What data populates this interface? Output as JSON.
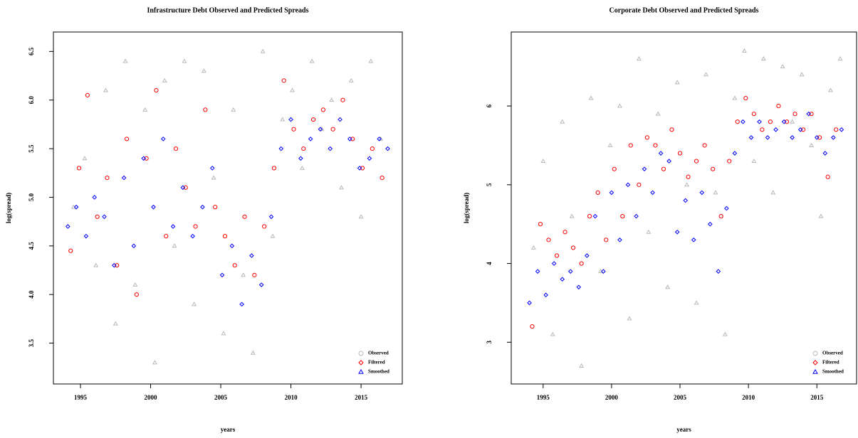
{
  "chart_data": [
    {
      "type": "scatter",
      "title": "Infrastructure Debt Observed and Predicted Spreads",
      "x_label": "years",
      "y_label": "log(spread)",
      "xlim": [
        1993.07,
        2017.94
      ],
      "ylim": [
        3.08,
        6.7
      ],
      "xticks": [
        1995,
        2000,
        2005,
        2010,
        2015
      ],
      "yticks": [
        3.5,
        {
          "value": 4,
          "label": "4.0"
        },
        4.5,
        {
          "value": 5,
          "label": "5.0"
        },
        5.5,
        {
          "value": 6,
          "label": "6.0"
        },
        6.5
      ],
      "legend": "bottom right",
      "series": [
        {
          "name": "Observed",
          "color": "#b8b8b8",
          "marker": "triangle",
          "legend_marker": "circle",
          "x": [
            1994.5,
            1995.3,
            1996.1,
            1996.8,
            1997.5,
            1998.2,
            1998.9,
            1999.6,
            2000.3,
            2001.0,
            2001.7,
            2002.4,
            2003.1,
            2003.8,
            2004.5,
            2005.2,
            2005.9,
            2006.6,
            2007.3,
            2008.0,
            2008.7,
            2009.4,
            2010.1,
            2010.8,
            2011.5,
            2012.2,
            2012.9,
            2013.6,
            2014.3,
            2015.0,
            2015.7,
            2016.4
          ],
          "values": [
            4.9,
            5.4,
            4.3,
            6.1,
            3.7,
            6.4,
            4.1,
            5.9,
            3.3,
            6.2,
            4.5,
            6.4,
            3.9,
            6.3,
            5.2,
            3.6,
            5.9,
            4.2,
            3.4,
            6.5,
            4.6,
            5.8,
            6.1,
            5.3,
            6.4,
            5.7,
            6.0,
            5.1,
            6.2,
            4.8,
            6.4,
            5.6
          ]
        },
        {
          "name": "Filtered",
          "color": "#ff0000",
          "marker": "circle",
          "legend_marker": "diamond",
          "x": [
            1994.3,
            1994.9,
            1995.5,
            1996.2,
            1996.9,
            1997.6,
            1998.3,
            1999.0,
            1999.7,
            2000.4,
            2001.1,
            2001.8,
            2002.5,
            2003.2,
            2003.9,
            2004.6,
            2005.3,
            2006.0,
            2006.7,
            2007.4,
            2008.1,
            2008.8,
            2009.5,
            2010.2,
            2010.9,
            2011.6,
            2012.3,
            2013.0,
            2013.7,
            2014.4,
            2015.1,
            2015.8,
            2016.5
          ],
          "values": [
            4.45,
            5.3,
            6.05,
            4.8,
            5.2,
            4.3,
            5.6,
            4.0,
            5.4,
            6.1,
            4.6,
            5.5,
            5.1,
            4.7,
            5.9,
            4.9,
            4.6,
            4.3,
            4.8,
            4.2,
            4.7,
            5.3,
            6.2,
            5.7,
            5.5,
            5.8,
            5.9,
            5.7,
            6.0,
            5.6,
            5.3,
            5.5,
            5.2
          ]
        },
        {
          "name": "Smoothed",
          "color": "#0000ff",
          "marker": "diamond",
          "legend_marker": "triangle",
          "x": [
            1994.1,
            1994.7,
            1995.4,
            1996.0,
            1996.7,
            1997.4,
            1998.1,
            1998.8,
            1999.5,
            2000.2,
            2000.9,
            2001.6,
            2002.3,
            2003.0,
            2003.7,
            2004.4,
            2005.1,
            2005.8,
            2006.5,
            2007.2,
            2007.9,
            2008.6,
            2009.3,
            2010.0,
            2010.7,
            2011.4,
            2012.1,
            2012.8,
            2013.5,
            2014.2,
            2014.9,
            2015.6,
            2016.3,
            2016.9
          ],
          "values": [
            4.7,
            4.9,
            4.6,
            5.0,
            4.8,
            4.3,
            5.2,
            4.5,
            5.4,
            4.9,
            5.6,
            4.7,
            5.1,
            4.6,
            4.9,
            5.3,
            4.2,
            4.5,
            3.9,
            4.4,
            4.1,
            4.8,
            5.5,
            5.8,
            5.4,
            5.6,
            5.7,
            5.5,
            5.8,
            5.6,
            5.3,
            5.4,
            5.6,
            5.5
          ]
        }
      ]
    },
    {
      "type": "scatter",
      "title": "Corporate Debt Observed and Predicted Spreads",
      "x_label": "years",
      "y_label": "log(spread)",
      "xlim": [
        1992.67,
        2017.9
      ],
      "ylim": [
        2.47,
        6.94
      ],
      "xticks": [
        1995,
        2000,
        2005,
        2010,
        2015
      ],
      "yticks": [
        3,
        4,
        5,
        6
      ],
      "legend": "bottom right",
      "series": [
        {
          "name": "Observed",
          "color": "#b8b8b8",
          "marker": "triangle",
          "legend_marker": "circle",
          "x": [
            1994.3,
            1995.0,
            1995.7,
            1996.4,
            1997.1,
            1997.8,
            1998.5,
            1999.2,
            1999.9,
            2000.6,
            2001.3,
            2002.0,
            2002.7,
            2003.4,
            2004.1,
            2004.8,
            2005.5,
            2006.2,
            2006.9,
            2007.6,
            2008.3,
            2009.0,
            2009.7,
            2010.4,
            2011.1,
            2011.8,
            2012.5,
            2013.2,
            2013.9,
            2014.6,
            2015.3,
            2016.0,
            2016.7
          ],
          "values": [
            4.2,
            5.3,
            3.1,
            5.8,
            4.6,
            2.7,
            6.1,
            3.9,
            5.5,
            6.0,
            3.3,
            6.6,
            4.4,
            5.9,
            3.7,
            6.3,
            5.0,
            3.5,
            6.4,
            4.9,
            3.1,
            6.1,
            6.7,
            5.3,
            6.6,
            4.9,
            6.5,
            5.8,
            6.4,
            5.5,
            4.6,
            6.2,
            6.6
          ]
        },
        {
          "name": "Filtered",
          "color": "#ff0000",
          "marker": "circle",
          "legend_marker": "diamond",
          "x": [
            1994.2,
            1994.8,
            1995.4,
            1996.0,
            1996.6,
            1997.2,
            1997.8,
            1998.4,
            1999.0,
            1999.6,
            2000.2,
            2000.8,
            2001.4,
            2002.0,
            2002.6,
            2003.2,
            2003.8,
            2004.4,
            2005.0,
            2005.6,
            2006.2,
            2006.8,
            2007.4,
            2008.0,
            2008.6,
            2009.2,
            2009.8,
            2010.4,
            2011.0,
            2011.6,
            2012.2,
            2012.8,
            2013.4,
            2014.0,
            2014.6,
            2015.2,
            2015.8,
            2016.4
          ],
          "values": [
            3.2,
            4.5,
            4.3,
            4.1,
            4.4,
            4.2,
            4.0,
            4.6,
            4.9,
            4.3,
            5.2,
            4.6,
            5.5,
            5.0,
            5.6,
            5.5,
            5.2,
            5.7,
            5.4,
            5.1,
            5.3,
            5.5,
            5.2,
            4.6,
            5.3,
            5.8,
            6.1,
            5.9,
            5.7,
            5.8,
            6.0,
            5.8,
            5.9,
            5.7,
            5.9,
            5.6,
            5.1,
            5.7
          ]
        },
        {
          "name": "Smoothed",
          "color": "#0000ff",
          "marker": "diamond",
          "legend_marker": "triangle",
          "x": [
            1994.0,
            1994.6,
            1995.2,
            1995.8,
            1996.4,
            1997.0,
            1997.6,
            1998.2,
            1998.8,
            1999.4,
            2000.0,
            2000.6,
            2001.2,
            2001.8,
            2002.4,
            2003.0,
            2003.6,
            2004.2,
            2004.8,
            2005.4,
            2006.0,
            2006.6,
            2007.2,
            2007.8,
            2008.4,
            2009.0,
            2009.6,
            2010.2,
            2010.8,
            2011.4,
            2012.0,
            2012.6,
            2013.2,
            2013.8,
            2014.4,
            2015.0,
            2015.6,
            2016.2,
            2016.8
          ],
          "values": [
            3.5,
            3.9,
            3.6,
            4.0,
            3.8,
            3.9,
            3.7,
            4.1,
            4.6,
            3.9,
            4.9,
            4.3,
            5.0,
            4.6,
            5.2,
            4.9,
            5.4,
            5.3,
            4.4,
            4.8,
            4.3,
            4.9,
            4.5,
            3.9,
            4.7,
            5.4,
            5.8,
            5.6,
            5.8,
            5.6,
            5.7,
            5.8,
            5.6,
            5.7,
            5.9,
            5.6,
            5.4,
            5.6,
            5.7
          ]
        }
      ]
    }
  ]
}
